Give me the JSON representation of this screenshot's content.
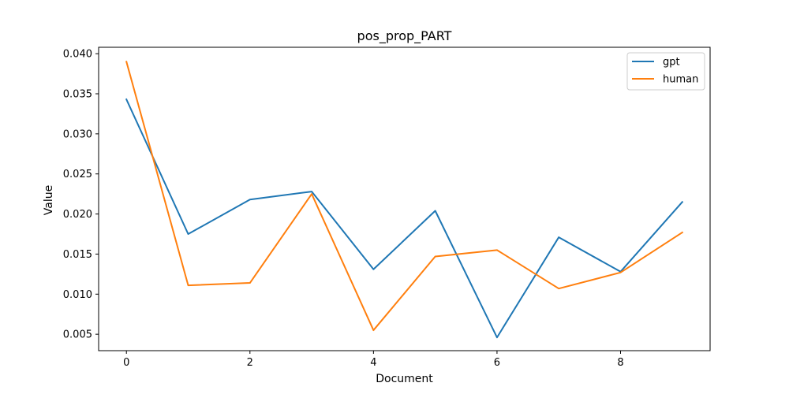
{
  "chart_data": {
    "type": "line",
    "title": "pos_prop_PART",
    "xlabel": "Document",
    "ylabel": "Value",
    "x": [
      0,
      1,
      2,
      3,
      4,
      5,
      6,
      7,
      8,
      9
    ],
    "xticks": [
      0,
      2,
      4,
      6,
      8
    ],
    "xlim": [
      -0.45,
      9.45
    ],
    "yticks": [
      0.005,
      0.01,
      0.015,
      0.02,
      0.025,
      0.03,
      0.035,
      0.04
    ],
    "ytick_labels": [
      "0.005",
      "0.010",
      "0.015",
      "0.020",
      "0.025",
      "0.030",
      "0.035",
      "0.040"
    ],
    "ylim": [
      0.00295,
      0.0408
    ],
    "grid": false,
    "legend_position": "top-right",
    "series": [
      {
        "name": "gpt",
        "color": "#1f77b4",
        "values": [
          0.0343,
          0.0175,
          0.0218,
          0.0228,
          0.0131,
          0.0204,
          0.0046,
          0.0171,
          0.0128,
          0.0215
        ]
      },
      {
        "name": "human",
        "color": "#ff7f0e",
        "values": [
          0.039,
          0.0111,
          0.0114,
          0.0225,
          0.0055,
          0.0147,
          0.0155,
          0.0107,
          0.0127,
          0.0177
        ]
      }
    ]
  }
}
